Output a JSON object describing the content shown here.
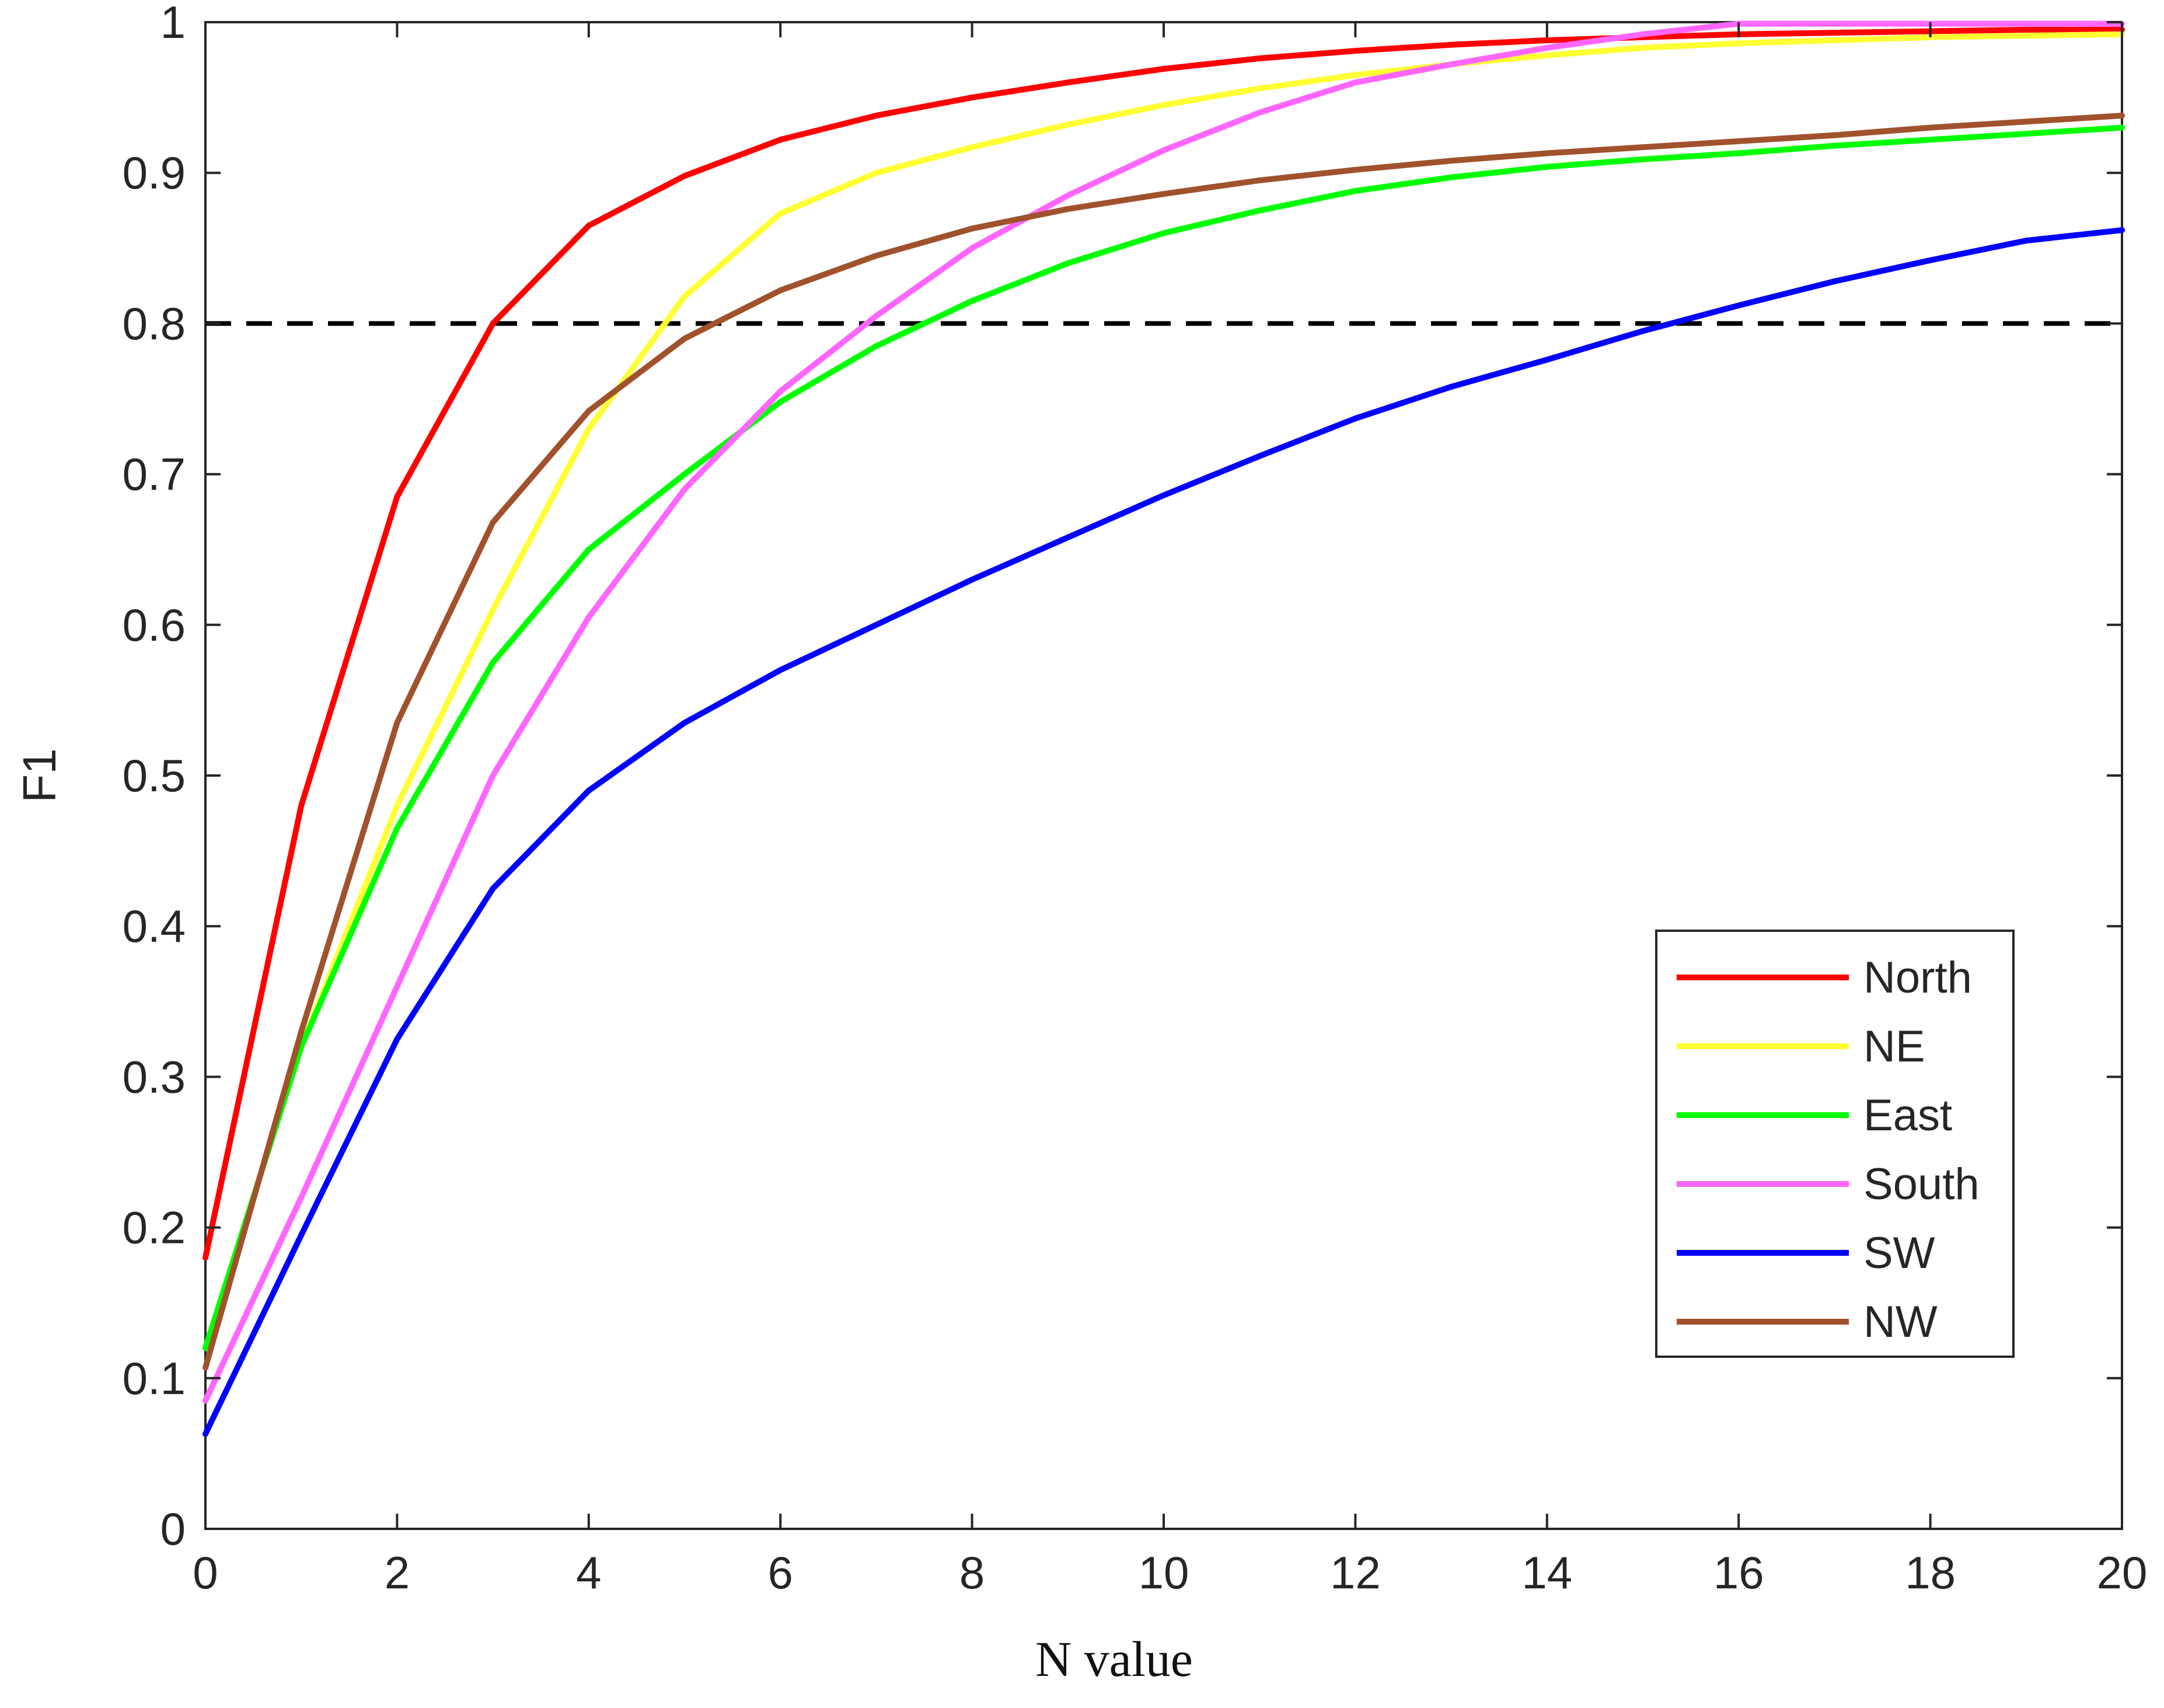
{
  "chart_data": {
    "type": "line",
    "title": "",
    "xlabel": "N value",
    "ylabel": "F1",
    "xlim": [
      0,
      20
    ],
    "ylim": [
      0,
      1
    ],
    "xticks": [
      0,
      2,
      4,
      6,
      8,
      10,
      12,
      14,
      16,
      18,
      20
    ],
    "xtick_labels": [
      "0",
      "2",
      "4",
      "6",
      "8",
      "10",
      "12",
      "14",
      "16",
      "18",
      "20"
    ],
    "yticks": [
      0,
      0.1,
      0.2,
      0.3,
      0.4,
      0.5,
      0.6,
      0.7,
      0.8,
      0.9,
      1
    ],
    "ytick_labels": [
      "0",
      "0.1",
      "0.2",
      "0.3",
      "0.4",
      "0.5",
      "0.6",
      "0.7",
      "0.8",
      "0.9",
      "1"
    ],
    "grid": false,
    "legend_position": "bottom-right",
    "x": [
      0,
      1,
      2,
      3,
      4,
      5,
      6,
      7,
      8,
      9,
      10,
      11,
      12,
      13,
      14,
      15,
      16,
      17,
      18,
      19,
      20
    ],
    "reference_line": {
      "y": 0.8,
      "style": "dashed",
      "color": "#000000"
    },
    "series": [
      {
        "name": "North",
        "color": "#ff0000",
        "values": [
          0.18,
          0.48,
          0.685,
          0.8,
          0.865,
          0.898,
          0.922,
          0.938,
          0.95,
          0.96,
          0.969,
          0.976,
          0.981,
          0.985,
          0.988,
          0.99,
          0.992,
          0.993,
          0.994,
          0.995,
          0.995
        ]
      },
      {
        "name": "NE",
        "color": "#ffff33",
        "values": [
          0.12,
          0.32,
          0.48,
          0.61,
          0.73,
          0.818,
          0.873,
          0.9,
          0.917,
          0.932,
          0.945,
          0.956,
          0.965,
          0.972,
          0.978,
          0.983,
          0.986,
          0.988,
          0.99,
          0.991,
          0.992
        ]
      },
      {
        "name": "East",
        "color": "#00ff00",
        "values": [
          0.12,
          0.32,
          0.465,
          0.575,
          0.65,
          0.7,
          0.748,
          0.785,
          0.815,
          0.84,
          0.86,
          0.875,
          0.888,
          0.897,
          0.904,
          0.909,
          0.913,
          0.918,
          0.922,
          0.926,
          0.93
        ]
      },
      {
        "name": "South",
        "color": "#ff66ff",
        "values": [
          0.085,
          0.22,
          0.36,
          0.5,
          0.605,
          0.69,
          0.755,
          0.805,
          0.85,
          0.885,
          0.915,
          0.94,
          0.96,
          0.972,
          0.983,
          0.992,
          0.999,
          0.999,
          0.999,
          0.999,
          0.999
        ]
      },
      {
        "name": "SW",
        "color": "#0000ff",
        "values": [
          0.063,
          0.195,
          0.325,
          0.425,
          0.49,
          0.535,
          0.57,
          0.6,
          0.63,
          0.658,
          0.686,
          0.712,
          0.737,
          0.758,
          0.776,
          0.795,
          0.812,
          0.828,
          0.842,
          0.855,
          0.862
        ]
      },
      {
        "name": "NW",
        "color": "#a0522d",
        "values": [
          0.107,
          0.33,
          0.535,
          0.668,
          0.742,
          0.79,
          0.822,
          0.845,
          0.863,
          0.876,
          0.886,
          0.895,
          0.902,
          0.908,
          0.913,
          0.917,
          0.921,
          0.925,
          0.93,
          0.934,
          0.938
        ]
      }
    ]
  }
}
